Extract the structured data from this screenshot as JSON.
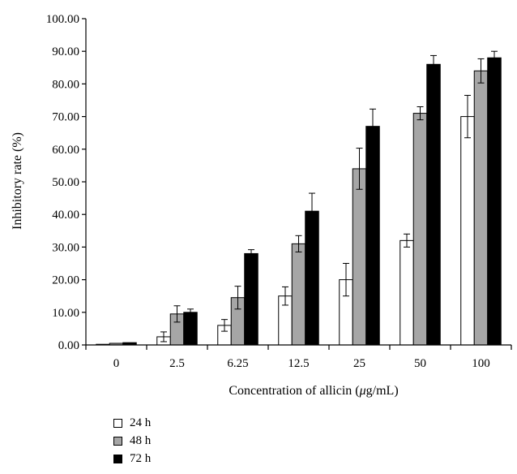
{
  "chart_data": {
    "type": "bar",
    "xlabel_prefix": "Concentration of allicin (",
    "xlabel_mu": "μ",
    "xlabel_suffix": "g/mL)",
    "ylabel": "Inhibitory rate (%)",
    "ylim": [
      0,
      100
    ],
    "yticks": [
      "0.00",
      "10.00",
      "20.00",
      "30.00",
      "40.00",
      "50.00",
      "60.00",
      "70.00",
      "80.00",
      "90.00",
      "100.00"
    ],
    "categories": [
      "0",
      "2.5",
      "6.25",
      "12.5",
      "25",
      "50",
      "100"
    ],
    "series": [
      {
        "name": "24 h",
        "color": "#ffffff",
        "values": [
          0.2,
          2.5,
          6.0,
          15.0,
          20.0,
          32.0,
          70.0
        ],
        "errors": [
          0.1,
          1.5,
          1.8,
          2.8,
          5.0,
          2.0,
          6.5
        ]
      },
      {
        "name": "48 h",
        "color": "#a6a6a6",
        "values": [
          0.5,
          9.5,
          14.5,
          31.0,
          54.0,
          71.0,
          84.0
        ],
        "errors": [
          0.2,
          2.5,
          3.5,
          2.5,
          6.3,
          2.0,
          3.7
        ]
      },
      {
        "name": "72 h",
        "color": "#000000",
        "values": [
          0.7,
          10.0,
          28.0,
          41.0,
          67.0,
          86.0,
          88.0
        ],
        "errors": [
          0.2,
          1.0,
          1.2,
          5.5,
          5.3,
          2.7,
          2.0
        ]
      }
    ],
    "legend_position": "bottom-left"
  }
}
